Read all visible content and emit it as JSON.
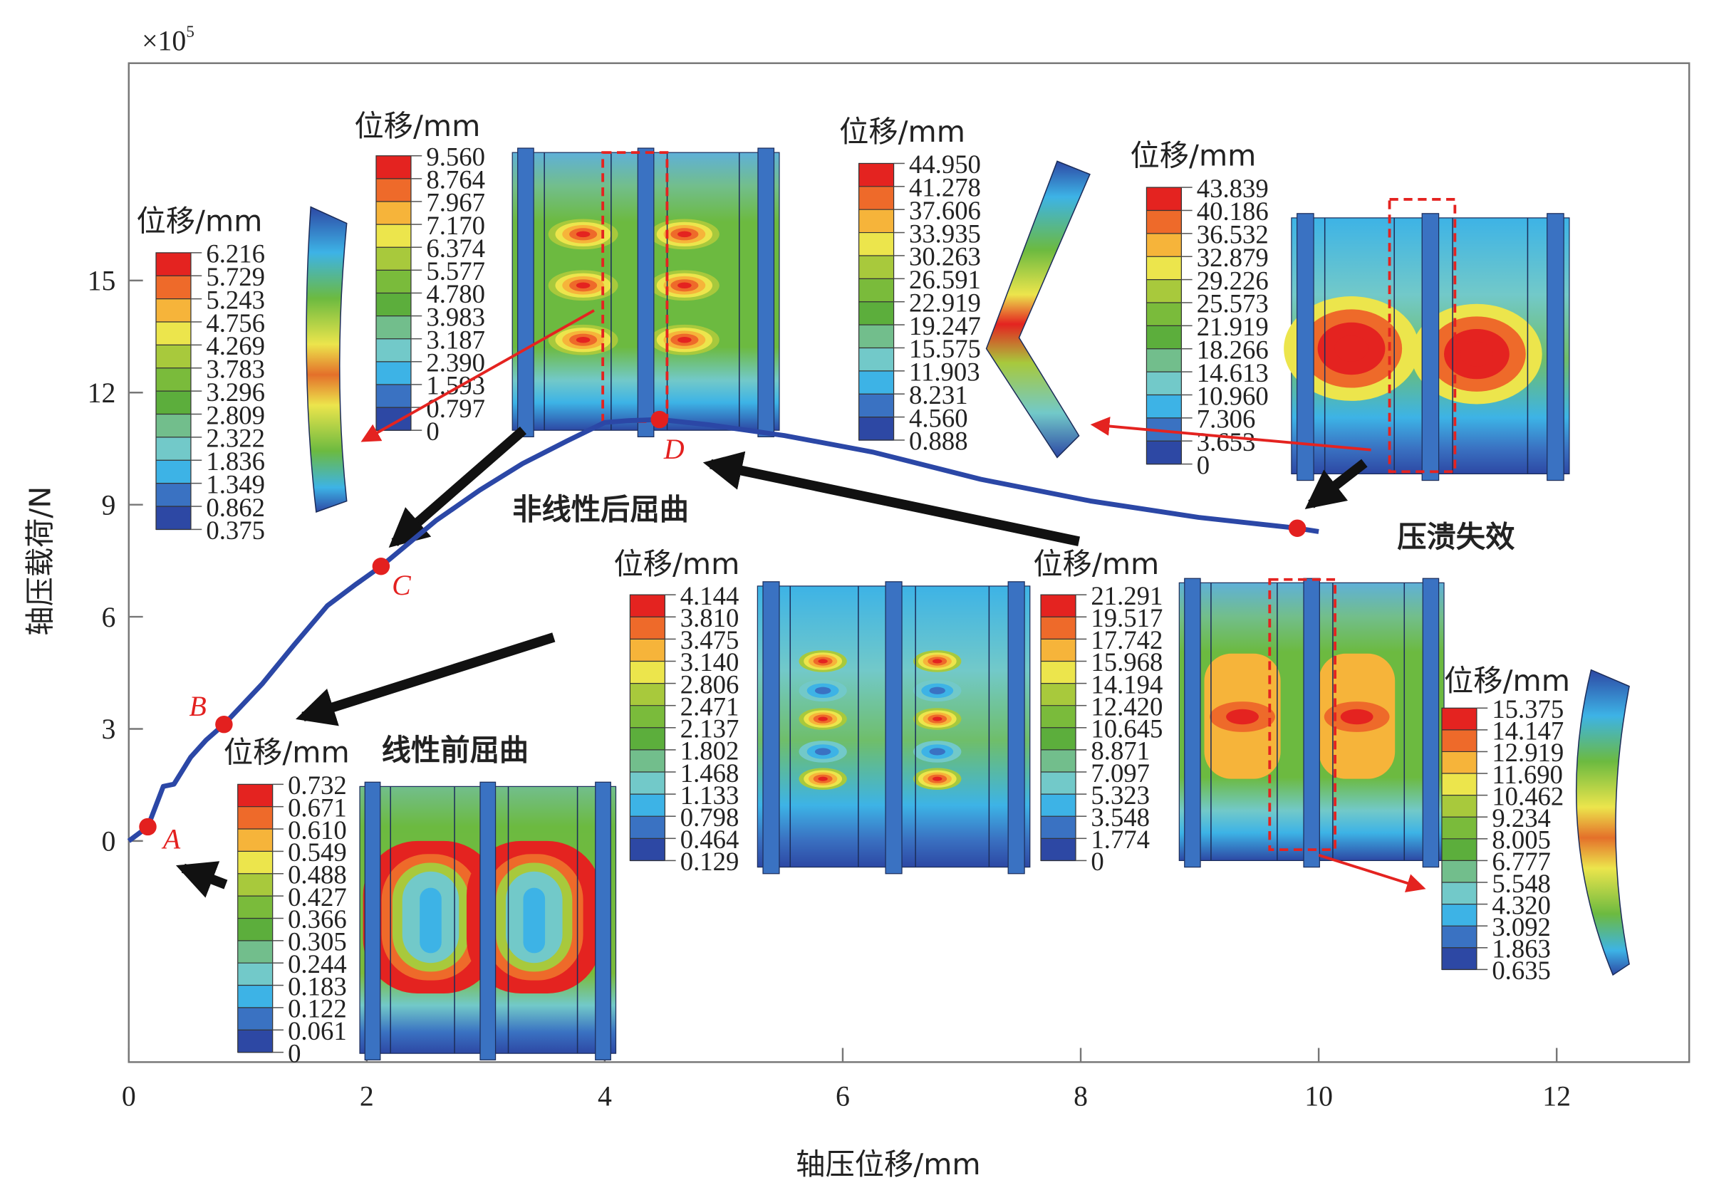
{
  "chart_data": {
    "type": "line",
    "xlabel": "轴压位移/mm",
    "ylabel": "轴压载荷/N",
    "y_scale_label": {
      "base": "×10",
      "exp": "5"
    },
    "xlim": [
      0,
      13.1
    ],
    "ylim": [
      -5.9,
      20.8
    ],
    "xticks": [
      0,
      2,
      4,
      6,
      8,
      10,
      12
    ],
    "yticks": [
      0,
      3,
      6,
      9,
      12,
      15
    ],
    "grid": false,
    "line_color": "#2b47a6",
    "marker_color": "#e3201f",
    "series": [
      {
        "x": [
          0,
          0.16,
          0.29,
          0.38,
          0.52,
          0.65,
          0.8,
          1.12,
          1.39,
          1.67,
          1.9,
          2.12,
          2.58,
          2.95,
          3.31,
          3.68,
          4.0,
          4.2,
          4.46,
          4.87,
          5.51,
          6.25,
          7.16,
          8.08,
          8.99,
          9.82,
          10.0
        ],
        "y": [
          0,
          0.38,
          1.46,
          1.52,
          2.24,
          2.7,
          3.12,
          4.2,
          5.25,
          6.3,
          6.85,
          7.35,
          8.57,
          9.39,
          10.1,
          10.7,
          11.2,
          11.25,
          11.28,
          11.14,
          10.85,
          10.41,
          9.68,
          9.1,
          8.66,
          8.37,
          8.28
        ]
      }
    ],
    "points": [
      {
        "label": "A",
        "x": 0.16,
        "y": 0.38
      },
      {
        "label": "B",
        "x": 0.8,
        "y": 3.12
      },
      {
        "label": "C",
        "x": 2.12,
        "y": 7.35
      },
      {
        "label": "D",
        "x": 4.46,
        "y": 11.28
      },
      {
        "label": "",
        "x": 9.82,
        "y": 8.37
      }
    ],
    "annotations": {
      "post_buckling": "非线性后屈曲",
      "crush_failure": "压溃失效",
      "pre_buckling": "线性前屈曲"
    }
  },
  "legend_colors": [
    "#e42320",
    "#ee6a2a",
    "#f6b43a",
    "#ece54c",
    "#a8c93c",
    "#7abb3b",
    "#5cae3c",
    "#72be8c",
    "#72c9c9",
    "#3db3e6",
    "#3a72c2",
    "#2d48a4"
  ],
  "insets": [
    {
      "title": "位移/mm",
      "values": [
        "6.216",
        "5.729",
        "5.243",
        "4.756",
        "4.269",
        "3.783",
        "3.296",
        "2.809",
        "2.322",
        "1.836",
        "1.349",
        "0.862",
        "0.375"
      ]
    },
    {
      "title": "位移/mm",
      "values": [
        "9.560",
        "8.764",
        "7.967",
        "7.170",
        "6.374",
        "5.577",
        "4.780",
        "3.983",
        "3.187",
        "2.390",
        "1.593",
        "0.797",
        "0"
      ]
    },
    {
      "title": "位移/mm",
      "values": [
        "44.950",
        "41.278",
        "37.606",
        "33.935",
        "30.263",
        "26.591",
        "22.919",
        "19.247",
        "15.575",
        "11.903",
        "8.231",
        "4.560",
        "0.888"
      ]
    },
    {
      "title": "位移/mm",
      "values": [
        "43.839",
        "40.186",
        "36.532",
        "32.879",
        "29.226",
        "25.573",
        "21.919",
        "18.266",
        "14.613",
        "10.960",
        "7.306",
        "3.653",
        "0"
      ]
    },
    {
      "title": "位移/mm",
      "values": [
        "0.732",
        "0.671",
        "0.610",
        "0.549",
        "0.488",
        "0.427",
        "0.366",
        "0.305",
        "0.244",
        "0.183",
        "0.122",
        "0.061",
        "0"
      ]
    },
    {
      "title": "位移/mm",
      "values": [
        "4.144",
        "3.810",
        "3.475",
        "3.140",
        "2.806",
        "2.471",
        "2.137",
        "1.802",
        "1.468",
        "1.133",
        "0.798",
        "0.464",
        "0.129"
      ]
    },
    {
      "title": "位移/mm",
      "values": [
        "21.291",
        "19.517",
        "17.742",
        "15.968",
        "14.194",
        "12.420",
        "10.645",
        "8.871",
        "7.097",
        "5.323",
        "3.548",
        "1.774",
        "0"
      ]
    },
    {
      "title": "位移/mm",
      "values": [
        "15.375",
        "14.147",
        "12.919",
        "11.690",
        "10.462",
        "9.234",
        "8.005",
        "6.777",
        "5.548",
        "4.320",
        "3.092",
        "1.863",
        "0.635"
      ]
    }
  ]
}
